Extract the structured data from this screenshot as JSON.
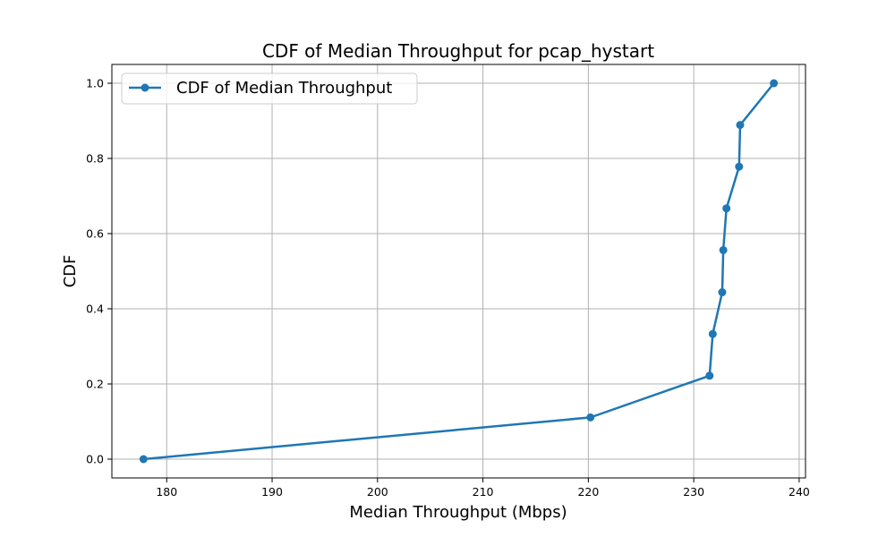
{
  "colors": {
    "series": "#1f77b4",
    "grid": "#b0b0b0",
    "axis": "#000000"
  },
  "chart_data": {
    "type": "line",
    "title": "CDF of Median Throughput for pcap_hystart",
    "xlabel": "Median Throughput (Mbps)",
    "ylabel": "CDF",
    "xlim": [
      174.8,
      240.6
    ],
    "ylim": [
      -0.05,
      1.05
    ],
    "xticks": [
      180,
      190,
      200,
      210,
      220,
      230,
      240
    ],
    "yticks": [
      0.0,
      0.2,
      0.4,
      0.6,
      0.8,
      1.0
    ],
    "xtick_labels": [
      "180",
      "190",
      "200",
      "210",
      "220",
      "230",
      "240"
    ],
    "ytick_labels": [
      "0.0",
      "0.2",
      "0.4",
      "0.6",
      "0.8",
      "1.0"
    ],
    "grid": true,
    "legend_position": "top-left",
    "series": [
      {
        "name": "CDF of Median Throughput",
        "marker": "circle",
        "x": [
          177.8,
          220.2,
          231.5,
          231.8,
          232.7,
          232.8,
          233.1,
          234.3,
          234.4,
          237.6
        ],
        "y": [
          0.0,
          0.111,
          0.222,
          0.333,
          0.444,
          0.556,
          0.667,
          0.778,
          0.889,
          1.0
        ]
      }
    ]
  }
}
